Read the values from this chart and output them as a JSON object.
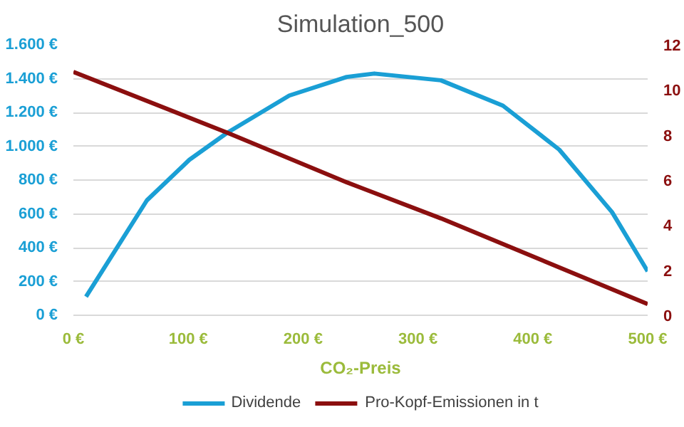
{
  "chart_data": {
    "type": "line",
    "title": "Simulation_500",
    "xlabel": "CO₂-Preis",
    "xlim": [
      0,
      500
    ],
    "xticks": [
      {
        "value": 0,
        "label": "0 €"
      },
      {
        "value": 100,
        "label": "100 €"
      },
      {
        "value": 200,
        "label": "200 €"
      },
      {
        "value": 300,
        "label": "300 €"
      },
      {
        "value": 400,
        "label": "400 €"
      },
      {
        "value": 500,
        "label": "500 €"
      }
    ],
    "ylim": [
      0,
      1600
    ],
    "yticks": [
      {
        "value": 0,
        "label": "0 €"
      },
      {
        "value": 200,
        "label": "200 €"
      },
      {
        "value": 400,
        "label": "400 €"
      },
      {
        "value": 600,
        "label": "600 €"
      },
      {
        "value": 800,
        "label": "800 €"
      },
      {
        "value": 1000,
        "label": "1.000 €"
      },
      {
        "value": 1200,
        "label": "1.200 €"
      },
      {
        "value": 1400,
        "label": "1.400 €"
      },
      {
        "value": 1600,
        "label": "1.600 €"
      }
    ],
    "y2lim": [
      0,
      12
    ],
    "y2ticks": [
      0,
      2,
      4,
      6,
      8,
      10,
      12
    ],
    "grid": "y",
    "legend": "bottom",
    "marker": "none",
    "line_style": "solid",
    "series": [
      {
        "name": "Dividende",
        "color": "#1a9fd5",
        "x": [
          11,
          64,
          101,
          134,
          188,
          238,
          262,
          320,
          374,
          423,
          469,
          500
        ],
        "values": [
          110,
          680,
          920,
          1080,
          1300,
          1410,
          1430,
          1390,
          1240,
          980,
          610,
          260
        ]
      },
      {
        "name": "Pro-Kopf-Emissionen in t",
        "color": "#8b0f0f",
        "axis": "y2",
        "x": [
          0,
          134,
          238,
          320,
          500
        ],
        "values": [
          10.8,
          8.1,
          5.9,
          4.3,
          0.5
        ]
      }
    ]
  }
}
